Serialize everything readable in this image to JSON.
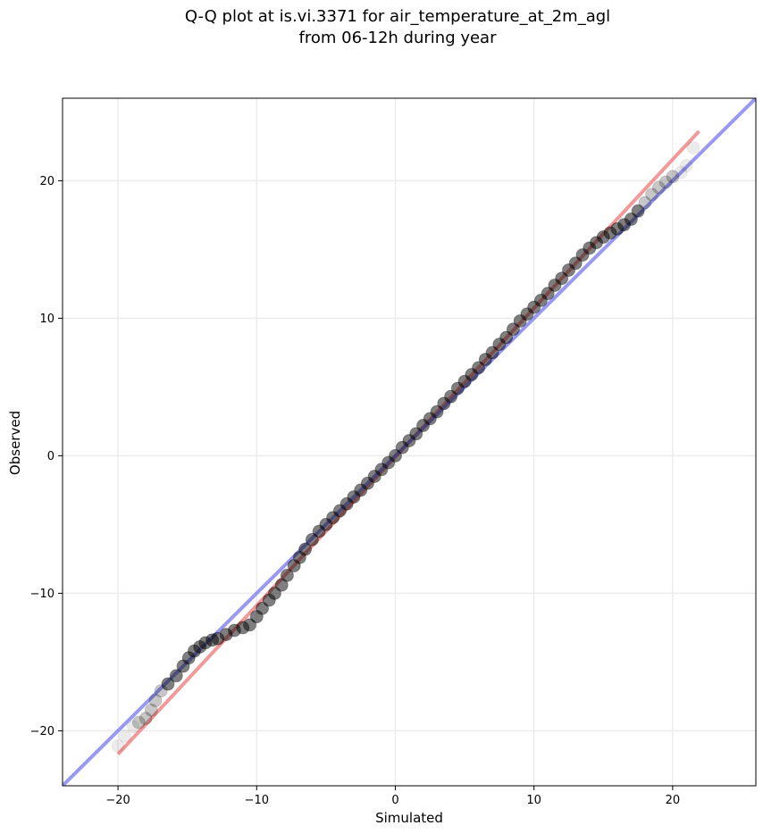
{
  "chart_data": {
    "type": "scatter",
    "title_lines": [
      "Q-Q plot at is.vi.3371 for air_temperature_at_2m_agl",
      "from 06-12h during year"
    ],
    "xlabel": "Simulated",
    "ylabel": "Observed",
    "xlim": [
      -24,
      26
    ],
    "ylim": [
      -24,
      26
    ],
    "xticks": [
      -20,
      -10,
      0,
      10,
      20
    ],
    "yticks": [
      -20,
      -10,
      0,
      10,
      20
    ],
    "xtick_labels": [
      "−20",
      "−10",
      "0",
      "10",
      "20"
    ],
    "ytick_labels": [
      "−20",
      "−10",
      "0",
      "10",
      "20"
    ],
    "grid": true,
    "quantile_points": {
      "x": [
        -20.0,
        -19.5,
        -18.9,
        -18.5,
        -18.0,
        -17.6,
        -17.3,
        -16.9,
        -16.4,
        -15.8,
        -15.3,
        -14.9,
        -14.5,
        -14.1,
        -13.7,
        -13.2,
        -12.8,
        -12.2,
        -11.6,
        -11.0,
        -10.5,
        -10.0,
        -9.6,
        -9.1,
        -8.7,
        -8.2,
        -7.8,
        -7.3,
        -6.9,
        -6.5,
        -6.0,
        -5.5,
        -5.0,
        -4.5,
        -4.0,
        -3.5,
        -3.0,
        -2.5,
        -2.0,
        -1.5,
        -1.0,
        -0.5,
        0.0,
        0.5,
        1.0,
        1.5,
        2.0,
        2.5,
        3.0,
        3.5,
        4.0,
        4.5,
        5.0,
        5.5,
        6.0,
        6.5,
        7.0,
        7.5,
        8.0,
        8.5,
        9.0,
        9.5,
        10.0,
        10.5,
        11.0,
        11.5,
        12.0,
        12.5,
        13.0,
        13.5,
        14.0,
        14.5,
        15.0,
        15.5,
        16.0,
        16.5,
        17.0,
        17.5,
        18.0,
        18.5,
        19.0,
        19.5,
        20.0,
        20.6,
        21.0,
        21.5
      ],
      "y": [
        -21.1,
        -20.4,
        -19.7,
        -19.4,
        -19.1,
        -18.5,
        -17.8,
        -17.1,
        -16.6,
        -16.0,
        -15.3,
        -14.7,
        -14.2,
        -13.9,
        -13.6,
        -13.4,
        -13.3,
        -13.0,
        -12.7,
        -12.5,
        -12.3,
        -11.7,
        -11.1,
        -10.5,
        -10.0,
        -9.4,
        -8.7,
        -8.0,
        -7.4,
        -6.8,
        -6.1,
        -5.5,
        -5.0,
        -4.5,
        -4.0,
        -3.5,
        -3.0,
        -2.5,
        -2.0,
        -1.5,
        -1.0,
        -0.5,
        0.0,
        0.6,
        1.1,
        1.6,
        2.2,
        2.7,
        3.2,
        3.8,
        4.3,
        4.9,
        5.4,
        5.9,
        6.4,
        7.0,
        7.5,
        8.1,
        8.6,
        9.2,
        9.8,
        10.3,
        10.8,
        11.3,
        11.8,
        12.4,
        12.9,
        13.5,
        14.0,
        14.6,
        15.1,
        15.5,
        15.9,
        16.2,
        16.5,
        16.8,
        17.2,
        17.8,
        18.4,
        19.0,
        19.5,
        19.9,
        20.3,
        20.6,
        21.1,
        22.4
      ]
    },
    "lines": [
      {
        "color": "#f08080",
        "x": [
          -20.0,
          21.9
        ],
        "y": [
          -21.7,
          23.6
        ]
      },
      {
        "color": "#8080f0",
        "x": [
          -24,
          26
        ],
        "y": [
          -24,
          26
        ]
      }
    ],
    "point_color": "#000000"
  }
}
